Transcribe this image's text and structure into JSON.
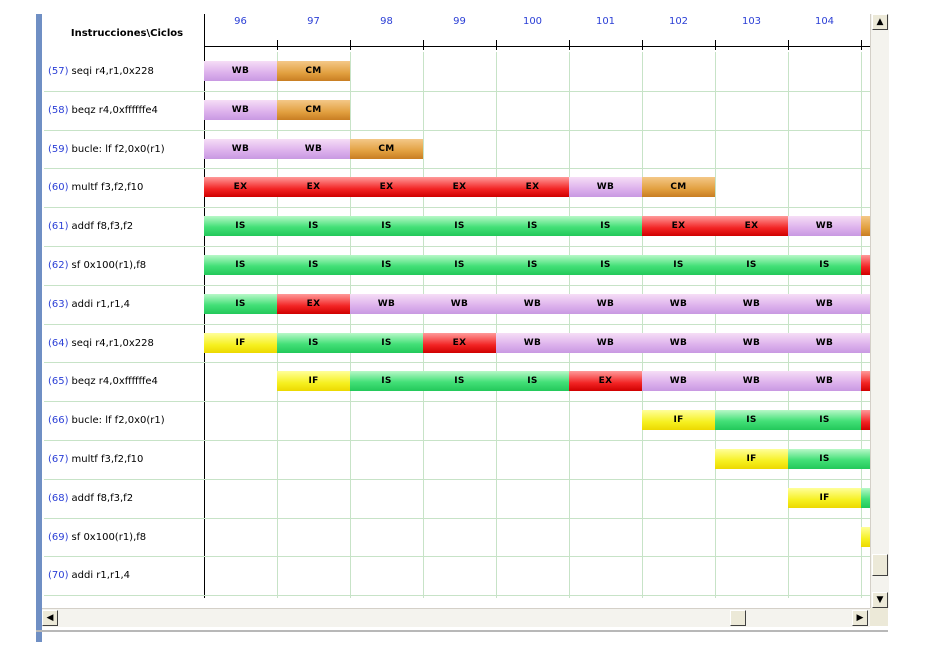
{
  "header": {
    "title": "Instrucciones\\Ciclos",
    "cycles": [
      "96",
      "97",
      "98",
      "99",
      "100",
      "101",
      "102",
      "103",
      "104"
    ]
  },
  "instructions": [
    {
      "num": "(57)",
      "text": "seqi r4,r1,0x228"
    },
    {
      "num": "(58)",
      "text": "beqz r4,0xffffffe4"
    },
    {
      "num": "(59)",
      "text": "bucle: lf f2,0x0(r1)"
    },
    {
      "num": "(60)",
      "text": "multf f3,f2,f10"
    },
    {
      "num": "(61)",
      "text": "addf f8,f3,f2"
    },
    {
      "num": "(62)",
      "text": "sf 0x100(r1),f8"
    },
    {
      "num": "(63)",
      "text": "addi r1,r1,4"
    },
    {
      "num": "(64)",
      "text": "seqi r4,r1,0x228"
    },
    {
      "num": "(65)",
      "text": "beqz r4,0xffffffe4"
    },
    {
      "num": "(66)",
      "text": "bucle: lf f2,0x0(r1)"
    },
    {
      "num": "(67)",
      "text": "multf f3,f2,f10"
    },
    {
      "num": "(68)",
      "text": "addf f8,f3,f2"
    },
    {
      "num": "(69)",
      "text": "sf 0x100(r1),f8"
    },
    {
      "num": "(70)",
      "text": "addi r1,r1,4"
    }
  ],
  "stages": [
    [
      "WB",
      "CM",
      "",
      "",
      "",
      "",
      "",
      "",
      ""
    ],
    [
      "WB",
      "CM",
      "",
      "",
      "",
      "",
      "",
      "",
      ""
    ],
    [
      "WB",
      "WB",
      "CM",
      "",
      "",
      "",
      "",
      "",
      ""
    ],
    [
      "EX",
      "EX",
      "EX",
      "EX",
      "EX",
      "WB",
      "CM",
      "",
      ""
    ],
    [
      "IS",
      "IS",
      "IS",
      "IS",
      "IS",
      "IS",
      "EX",
      "EX",
      "WB"
    ],
    [
      "IS",
      "IS",
      "IS",
      "IS",
      "IS",
      "IS",
      "IS",
      "IS",
      "IS"
    ],
    [
      "IS",
      "EX",
      "WB",
      "WB",
      "WB",
      "WB",
      "WB",
      "WB",
      "WB"
    ],
    [
      "IF",
      "IS",
      "IS",
      "EX",
      "WB",
      "WB",
      "WB",
      "WB",
      "WB"
    ],
    [
      "",
      "IF",
      "IS",
      "IS",
      "IS",
      "EX",
      "WB",
      "WB",
      "WB"
    ],
    [
      "",
      "",
      "",
      "",
      "",
      "",
      "IF",
      "IS",
      "IS"
    ],
    [
      "",
      "",
      "",
      "",
      "",
      "",
      "",
      "IF",
      "IS"
    ],
    [
      "",
      "",
      "",
      "",
      "",
      "",
      "",
      "",
      "IF"
    ],
    [
      "",
      "",
      "",
      "",
      "",
      "",
      "",
      "",
      ""
    ],
    [
      "",
      "",
      "",
      "",
      "",
      "",
      "",
      "",
      ""
    ]
  ],
  "overflow": [
    "",
    "",
    "",
    "",
    "CM",
    "EX",
    "WB",
    "WB",
    "EX",
    "EX",
    "IS",
    "IS",
    "IF",
    "",
    ""
  ],
  "colors": {
    "WB": "#dcb0ec",
    "CM": "#e2a040",
    "EX": "#f22424",
    "IS": "#44e078",
    "IF": "#f6f020",
    "cycle_text": "#2b3fd6",
    "grid_line": "#c7e3c7"
  },
  "scroll": {
    "up_icon": "▲",
    "down_icon": "▼",
    "left_icon": "◀",
    "right_icon": "▶"
  }
}
